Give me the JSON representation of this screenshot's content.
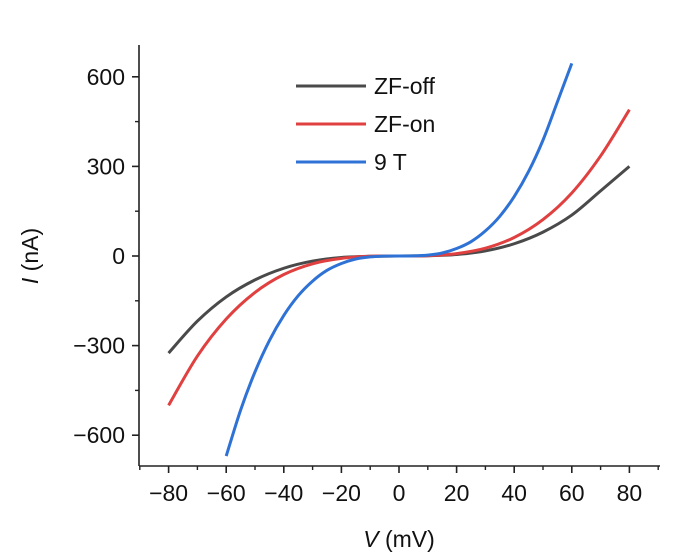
{
  "chart_data": {
    "type": "line",
    "title": "",
    "xlabel_var": "V",
    "xlabel_unit": " (mV)",
    "ylabel_var": "I",
    "ylabel_unit": " (nA)",
    "xlim": [
      -90,
      90
    ],
    "ylim": [
      -700,
      700
    ],
    "xticks": [
      -80,
      -60,
      -40,
      -20,
      0,
      20,
      40,
      60,
      80
    ],
    "xtick_labels": [
      "−80",
      "−60",
      "−40",
      "−20",
      "0",
      "20",
      "40",
      "60",
      "80"
    ],
    "yticks": [
      -600,
      -300,
      0,
      300,
      600
    ],
    "ytick_labels": [
      "−600",
      "−300",
      "0",
      "300",
      "600"
    ],
    "grid": false,
    "legend_position": "top-center",
    "series": [
      {
        "name": "ZF-off",
        "color": "#4a4a4a",
        "x": [
          -80,
          -70,
          -60,
          -50,
          -40,
          -30,
          -20,
          -10,
          0,
          10,
          20,
          30,
          40,
          50,
          60,
          70,
          80
        ],
        "y": [
          -325,
          -218,
          -137,
          -80,
          -41,
          -17,
          -5,
          -1,
          0,
          1,
          5,
          17,
          41,
          80,
          137,
          218,
          300
        ]
      },
      {
        "name": "ZF-on",
        "color": "#e0403f",
        "x": [
          -80,
          -70,
          -60,
          -50,
          -40,
          -30,
          -20,
          -10,
          0,
          10,
          20,
          30,
          40,
          50,
          60,
          70,
          80
        ],
        "y": [
          -500,
          -335,
          -211,
          -122,
          -62,
          -26,
          -8,
          -1,
          0,
          1,
          8,
          26,
          62,
          122,
          211,
          335,
          490
        ]
      },
      {
        "name": "9 T",
        "color": "#2f72d6",
        "x": [
          -60,
          -55,
          -50,
          -45,
          -40,
          -35,
          -30,
          -25,
          -20,
          -15,
          -10,
          -5,
          0,
          5,
          10,
          15,
          20,
          25,
          30,
          35,
          40,
          45,
          50,
          55,
          60
        ],
        "y": [
          -670,
          -516,
          -388,
          -283,
          -199,
          -133,
          -84,
          -48,
          -25,
          -10,
          -3,
          -0.4,
          0,
          0.4,
          3,
          10,
          25,
          48,
          84,
          133,
          199,
          283,
          388,
          516,
          645
        ]
      }
    ]
  }
}
